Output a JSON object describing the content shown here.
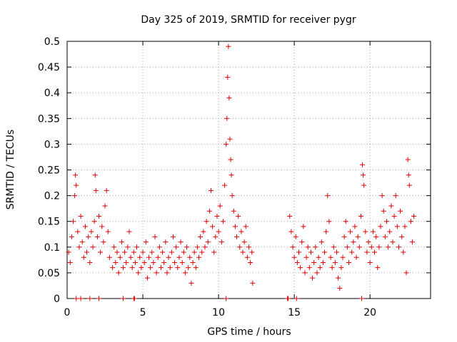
{
  "colors": {
    "marker": "#e00000",
    "grid": "#a0a0a0",
    "axis": "#000000",
    "background": "#ffffff"
  },
  "chart_data": {
    "type": "scatter",
    "title": "Day 325 of 2019, SRMTID for receiver pygr",
    "xlabel": "GPS time / hours",
    "ylabel": "SRMTID / TECUs",
    "xlim": [
      0,
      24
    ],
    "ylim": [
      0,
      0.5
    ],
    "grid": true,
    "marker": "+",
    "x_ticks": [
      {
        "value": 0,
        "label": "0"
      },
      {
        "value": 5,
        "label": "5"
      },
      {
        "value": 10,
        "label": "10"
      },
      {
        "value": 15,
        "label": "15"
      },
      {
        "value": 20,
        "label": "20"
      }
    ],
    "y_ticks": [
      {
        "value": 0,
        "label": "0"
      },
      {
        "value": 0.05,
        "label": "0.05"
      },
      {
        "value": 0.1,
        "label": "0.1"
      },
      {
        "value": 0.15,
        "label": "0.15"
      },
      {
        "value": 0.2,
        "label": "0.2"
      },
      {
        "value": 0.25,
        "label": "0.25"
      },
      {
        "value": 0.3,
        "label": "0.3"
      },
      {
        "value": 0.35,
        "label": "0.35"
      },
      {
        "value": 0.4,
        "label": "0.4"
      },
      {
        "value": 0.45,
        "label": "0.45"
      },
      {
        "value": 0.5,
        "label": "0.5"
      }
    ],
    "series": [
      {
        "name": "SRMTID",
        "points": [
          [
            0.1,
            0.09
          ],
          [
            0.2,
            0.07
          ],
          [
            0.3,
            0.12
          ],
          [
            0.4,
            0.15
          ],
          [
            0.5,
            0.2
          ],
          [
            0.55,
            0.24
          ],
          [
            0.6,
            0.22
          ],
          [
            0.7,
            0.13
          ],
          [
            0.8,
            0.1
          ],
          [
            0.9,
            0.16
          ],
          [
            1.0,
            0.11
          ],
          [
            1.1,
            0.08
          ],
          [
            1.2,
            0.14
          ],
          [
            1.3,
            0.09
          ],
          [
            1.4,
            0.12
          ],
          [
            1.5,
            0.07
          ],
          [
            1.6,
            0.13
          ],
          [
            1.7,
            0.1
          ],
          [
            1.8,
            0.15
          ],
          [
            1.85,
            0.24
          ],
          [
            1.9,
            0.21
          ],
          [
            2.0,
            0.12
          ],
          [
            2.1,
            0.16
          ],
          [
            2.2,
            0.09
          ],
          [
            2.3,
            0.14
          ],
          [
            2.4,
            0.11
          ],
          [
            2.5,
            0.18
          ],
          [
            2.6,
            0.21
          ],
          [
            2.7,
            0.13
          ],
          [
            2.8,
            0.08
          ],
          [
            3.0,
            0.06
          ],
          [
            3.1,
            0.1
          ],
          [
            3.2,
            0.07
          ],
          [
            3.3,
            0.09
          ],
          [
            3.4,
            0.05
          ],
          [
            3.5,
            0.08
          ],
          [
            3.6,
            0.11
          ],
          [
            3.7,
            0.06
          ],
          [
            3.8,
            0.09
          ],
          [
            3.9,
            0.07
          ],
          [
            4.0,
            0.1
          ],
          [
            4.1,
            0.13
          ],
          [
            4.2,
            0.08
          ],
          [
            4.3,
            0.06
          ],
          [
            4.4,
            0.09
          ],
          [
            4.5,
            0.07
          ],
          [
            4.6,
            0.1
          ],
          [
            4.7,
            0.05
          ],
          [
            4.8,
            0.08
          ],
          [
            4.9,
            0.06
          ],
          [
            5.0,
            0.09
          ],
          [
            5.1,
            0.07
          ],
          [
            5.2,
            0.11
          ],
          [
            5.3,
            0.04
          ],
          [
            5.4,
            0.08
          ],
          [
            5.5,
            0.06
          ],
          [
            5.6,
            0.09
          ],
          [
            5.7,
            0.07
          ],
          [
            5.8,
            0.12
          ],
          [
            5.9,
            0.05
          ],
          [
            6.0,
            0.08
          ],
          [
            6.1,
            0.1
          ],
          [
            6.2,
            0.06
          ],
          [
            6.3,
            0.09
          ],
          [
            6.4,
            0.07
          ],
          [
            6.5,
            0.11
          ],
          [
            6.6,
            0.05
          ],
          [
            6.7,
            0.08
          ],
          [
            6.8,
            0.06
          ],
          [
            6.9,
            0.09
          ],
          [
            7.0,
            0.12
          ],
          [
            7.1,
            0.07
          ],
          [
            7.2,
            0.1
          ],
          [
            7.3,
            0.06
          ],
          [
            7.4,
            0.08
          ],
          [
            7.5,
            0.11
          ],
          [
            7.6,
            0.07
          ],
          [
            7.7,
            0.09
          ],
          [
            7.8,
            0.05
          ],
          [
            7.9,
            0.1
          ],
          [
            8.0,
            0.06
          ],
          [
            8.1,
            0.08
          ],
          [
            8.2,
            0.03
          ],
          [
            8.3,
            0.07
          ],
          [
            8.4,
            0.09
          ],
          [
            8.5,
            0.06
          ],
          [
            8.6,
            0.1
          ],
          [
            8.7,
            0.08
          ],
          [
            8.8,
            0.12
          ],
          [
            8.9,
            0.09
          ],
          [
            9.0,
            0.13
          ],
          [
            9.1,
            0.1
          ],
          [
            9.2,
            0.15
          ],
          [
            9.3,
            0.11
          ],
          [
            9.4,
            0.17
          ],
          [
            9.5,
            0.21
          ],
          [
            9.6,
            0.14
          ],
          [
            9.7,
            0.09
          ],
          [
            9.8,
            0.12
          ],
          [
            9.9,
            0.16
          ],
          [
            10.0,
            0.13
          ],
          [
            10.1,
            0.18
          ],
          [
            10.2,
            0.11
          ],
          [
            10.3,
            0.15
          ],
          [
            10.4,
            0.22
          ],
          [
            10.5,
            0.3
          ],
          [
            10.55,
            0.35
          ],
          [
            10.6,
            0.43
          ],
          [
            10.65,
            0.49
          ],
          [
            10.7,
            0.39
          ],
          [
            10.75,
            0.31
          ],
          [
            10.8,
            0.27
          ],
          [
            10.85,
            0.24
          ],
          [
            10.9,
            0.2
          ],
          [
            11.0,
            0.17
          ],
          [
            11.1,
            0.14
          ],
          [
            11.2,
            0.12
          ],
          [
            11.3,
            0.16
          ],
          [
            11.4,
            0.1
          ],
          [
            11.5,
            0.13
          ],
          [
            11.6,
            0.09
          ],
          [
            11.7,
            0.11
          ],
          [
            11.8,
            0.14
          ],
          [
            11.9,
            0.08
          ],
          [
            12.0,
            0.1
          ],
          [
            12.1,
            0.07
          ],
          [
            12.2,
            0.09
          ],
          [
            12.25,
            0.03
          ],
          [
            14.7,
            0.16
          ],
          [
            14.8,
            0.13
          ],
          [
            14.9,
            0.1
          ],
          [
            15.0,
            0.08
          ],
          [
            15.1,
            0.12
          ],
          [
            15.2,
            0.07
          ],
          [
            15.3,
            0.09
          ],
          [
            15.4,
            0.06
          ],
          [
            15.5,
            0.11
          ],
          [
            15.6,
            0.14
          ],
          [
            15.7,
            0.05
          ],
          [
            15.8,
            0.08
          ],
          [
            15.9,
            0.1
          ],
          [
            16.0,
            0.06
          ],
          [
            16.1,
            0.09
          ],
          [
            16.2,
            0.04
          ],
          [
            16.3,
            0.07
          ],
          [
            16.4,
            0.1
          ],
          [
            16.5,
            0.05
          ],
          [
            16.6,
            0.08
          ],
          [
            16.7,
            0.06
          ],
          [
            16.8,
            0.11
          ],
          [
            16.9,
            0.07
          ],
          [
            17.0,
            0.09
          ],
          [
            17.1,
            0.13
          ],
          [
            17.2,
            0.2
          ],
          [
            17.3,
            0.15
          ],
          [
            17.4,
            0.08
          ],
          [
            17.5,
            0.06
          ],
          [
            17.6,
            0.1
          ],
          [
            17.7,
            0.07
          ],
          [
            17.8,
            0.09
          ],
          [
            17.9,
            0.04
          ],
          [
            18.0,
            0.02
          ],
          [
            18.1,
            0.06
          ],
          [
            18.2,
            0.08
          ],
          [
            18.3,
            0.12
          ],
          [
            18.4,
            0.15
          ],
          [
            18.5,
            0.1
          ],
          [
            18.6,
            0.07
          ],
          [
            18.7,
            0.13
          ],
          [
            18.8,
            0.09
          ],
          [
            18.9,
            0.11
          ],
          [
            19.0,
            0.14
          ],
          [
            19.1,
            0.08
          ],
          [
            19.2,
            0.12
          ],
          [
            19.3,
            0.1
          ],
          [
            19.4,
            0.16
          ],
          [
            19.5,
            0.26
          ],
          [
            19.55,
            0.24
          ],
          [
            19.6,
            0.22
          ],
          [
            19.7,
            0.13
          ],
          [
            19.8,
            0.09
          ],
          [
            19.9,
            0.11
          ],
          [
            20.0,
            0.07
          ],
          [
            20.1,
            0.1
          ],
          [
            20.2,
            0.13
          ],
          [
            20.3,
            0.09
          ],
          [
            20.4,
            0.12
          ],
          [
            20.5,
            0.06
          ],
          [
            20.6,
            0.1
          ],
          [
            20.7,
            0.14
          ],
          [
            20.8,
            0.2
          ],
          [
            20.9,
            0.17
          ],
          [
            21.0,
            0.12
          ],
          [
            21.1,
            0.15
          ],
          [
            21.2,
            0.1
          ],
          [
            21.3,
            0.13
          ],
          [
            21.4,
            0.18
          ],
          [
            21.5,
            0.11
          ],
          [
            21.6,
            0.16
          ],
          [
            21.7,
            0.2
          ],
          [
            21.8,
            0.14
          ],
          [
            21.9,
            0.1
          ],
          [
            22.0,
            0.17
          ],
          [
            22.1,
            0.12
          ],
          [
            22.2,
            0.09
          ],
          [
            22.3,
            0.14
          ],
          [
            22.4,
            0.05
          ],
          [
            22.5,
            0.27
          ],
          [
            22.55,
            0.24
          ],
          [
            22.6,
            0.22
          ],
          [
            22.7,
            0.15
          ],
          [
            22.8,
            0.11
          ],
          [
            22.9,
            0.16
          ],
          [
            0.6,
            0.0
          ],
          [
            0.9,
            0.0
          ],
          [
            1.5,
            0.0
          ],
          [
            2.1,
            0.0
          ],
          [
            3.7,
            0.0
          ],
          [
            4.4,
            0.0
          ],
          [
            4.45,
            0.0
          ],
          [
            10.5,
            0.0
          ],
          [
            14.55,
            0.0
          ],
          [
            14.6,
            0.0
          ],
          [
            15.15,
            0.0
          ],
          [
            19.45,
            0.0
          ]
        ]
      }
    ]
  }
}
